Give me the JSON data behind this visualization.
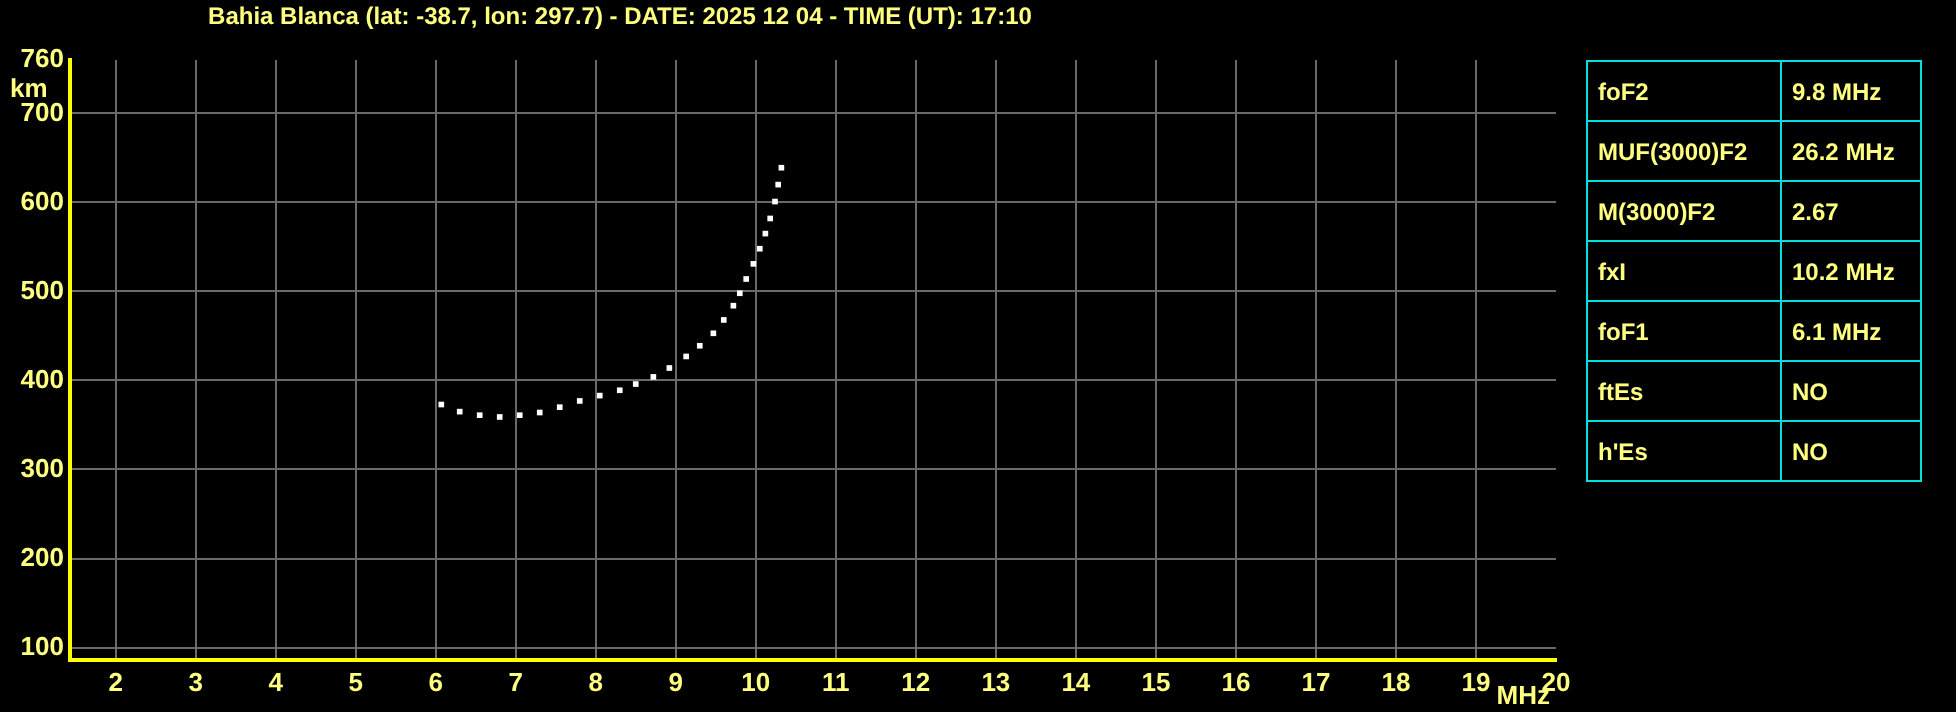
{
  "chart_data": [
    {
      "type": "scatter",
      "title": "Bahia Blanca (lat: -38.7, lon: 297.7) - DATE: 2025 12 04 - TIME (UT): 17:10",
      "xlabel": "MHz",
      "ylabel": "km",
      "series": [
        {
          "color": "#ffffff",
          "x": [
            6.07,
            6.3,
            6.55,
            6.8,
            7.05,
            7.3,
            7.55,
            7.8,
            8.05,
            8.3,
            8.5,
            8.72,
            8.92,
            9.13,
            9.3,
            9.47,
            9.6,
            9.72,
            9.8,
            9.88,
            9.97,
            10.05,
            10.12,
            10.18,
            10.24,
            10.28,
            10.32
          ],
          "values": [
            373,
            365,
            361,
            359,
            361,
            364,
            370,
            377,
            383,
            389,
            396,
            404,
            414,
            427,
            439,
            453,
            468,
            484,
            498,
            514,
            531,
            548,
            565,
            582,
            601,
            620,
            639
          ]
        }
      ],
      "xlim": [
        1.43,
        20
      ],
      "xticks": [
        2,
        3,
        4,
        5,
        6,
        7,
        8,
        9,
        10,
        11,
        12,
        13,
        14,
        15,
        16,
        17,
        18,
        19,
        20
      ],
      "ylim": [
        86,
        760
      ],
      "yticks": [
        100,
        200,
        300,
        400,
        500,
        600,
        700,
        760
      ],
      "grid": true,
      "legend": false,
      "marker": "square"
    },
    {
      "type": "other",
      "categories": [
        "foF2",
        "MUF(3000)F2",
        "M(3000)F2",
        "fxI",
        "foF1",
        "ftEs",
        "h'Es"
      ],
      "value_labels": [
        "9.8 MHz",
        "26.2 MHz",
        "2.67",
        "10.2 MHz",
        "6.1 MHz",
        "NO",
        "NO"
      ]
    }
  ]
}
